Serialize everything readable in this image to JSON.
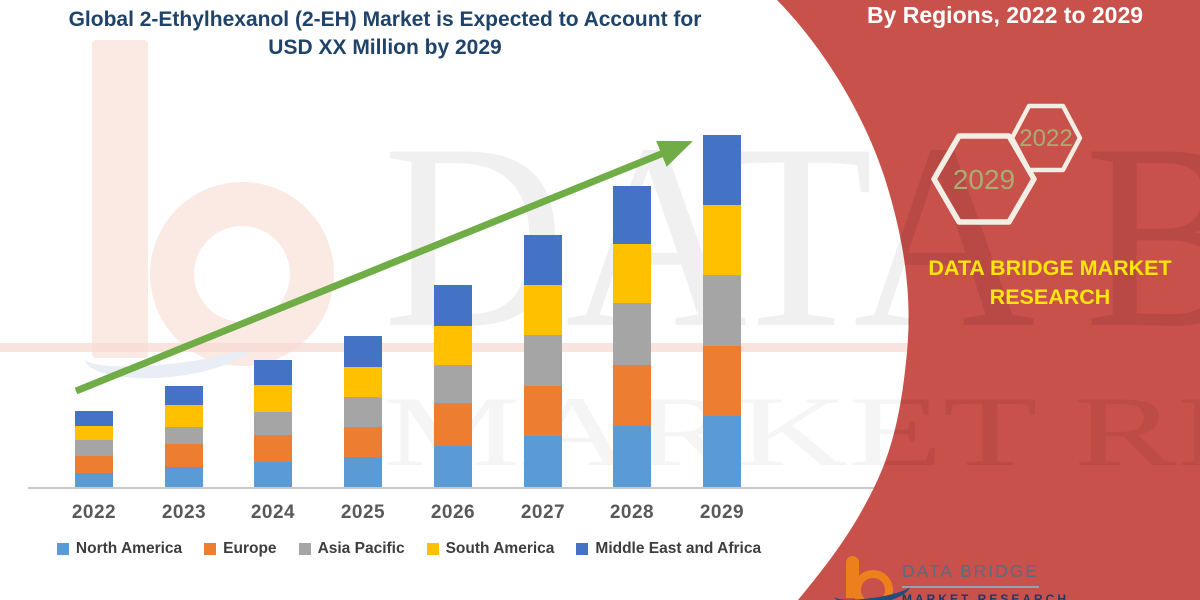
{
  "header": {
    "line1": "Global 2-Ethylhexanol (2-EH) Market is Expected to Account for",
    "line2": "USD XX Million by 2029"
  },
  "ribbon": {
    "heading": "By Regions, 2022 to 2029",
    "hexagon_large_year": "2029",
    "hexagon_small_year": "2022",
    "brand_line1": "DATA BRIDGE MARKET",
    "brand_line2": "RESEARCH",
    "background_color": "#c8514b",
    "hexagon_text_color": "#a8ad72",
    "brand_text_color": "#ffe60a"
  },
  "watermark": {
    "row1": "DATA BRIDGE",
    "row2": "MARKET RESEARCH"
  },
  "logo": {
    "line1": "DATA BRIDGE",
    "line2": "MARKET RESEARCH"
  },
  "colors": {
    "arrow": "#70ad47",
    "axis": "#c9c9c9",
    "title_text": "#1f4369",
    "x_label_text": "#595959"
  },
  "chart_data": {
    "type": "bar",
    "stacked": true,
    "title": "Global 2-Ethylhexanol (2-EH) Market is Expected to Account for USD XX Million by 2029",
    "xlabel": "",
    "ylabel": "",
    "y_axis_shown": false,
    "units": "relative height (no value axis shown; market sized as USD XX Million)",
    "grid": false,
    "legend_position": "bottom",
    "trend_arrow": true,
    "categories": [
      "2022",
      "2023",
      "2024",
      "2025",
      "2026",
      "2027",
      "2028",
      "2029"
    ],
    "series": [
      {
        "name": "North America",
        "color": "#5b9bd5",
        "values": [
          14,
          20,
          25,
          30,
          41,
          51,
          61,
          71
        ]
      },
      {
        "name": "Europe",
        "color": "#ed7d31",
        "values": [
          17,
          23,
          27,
          30,
          43,
          50,
          61,
          70
        ]
      },
      {
        "name": "Asia Pacific",
        "color": "#a5a5a5",
        "values": [
          16,
          17,
          23,
          30,
          38,
          51,
          62,
          71
        ]
      },
      {
        "name": "South America",
        "color": "#ffc000",
        "values": [
          14,
          22,
          27,
          30,
          39,
          50,
          59,
          70
        ]
      },
      {
        "name": "Middle East and Africa",
        "color": "#4472c4",
        "values": [
          15,
          19,
          25,
          31,
          41,
          50,
          58,
          70
        ]
      }
    ],
    "totals_by_year": [
      76,
      101,
      127,
      151,
      202,
      252,
      301,
      352
    ]
  }
}
